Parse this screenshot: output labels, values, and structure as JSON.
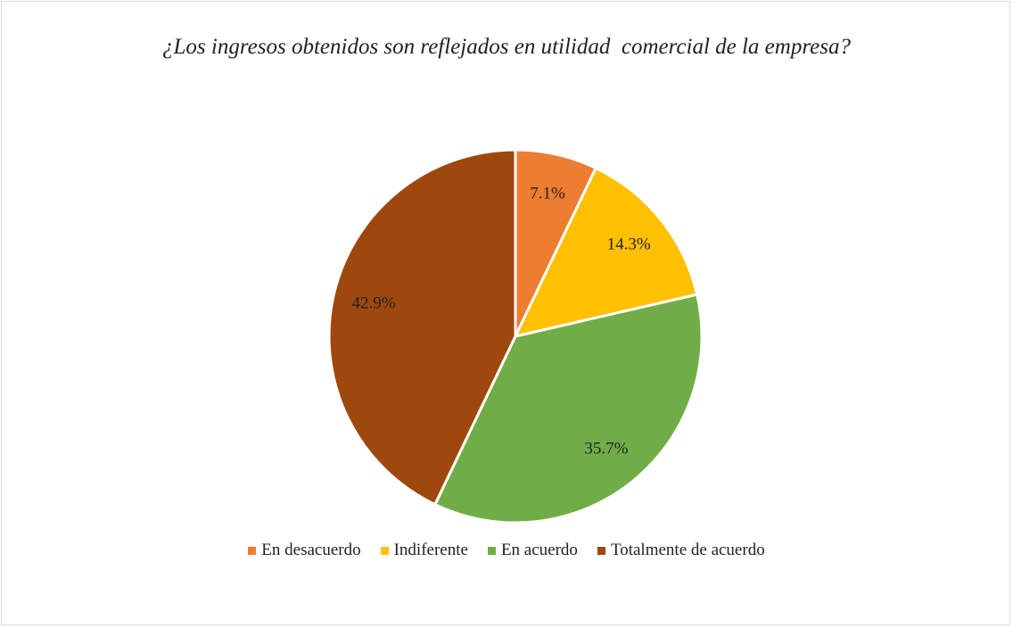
{
  "chart_data": {
    "type": "pie",
    "title": "¿Los ingresos obtenidos son reflejados en utilidad  comercial de la empresa?",
    "categories": [
      "En desacuerdo",
      "Indiferente",
      "En acuerdo",
      "Totalmente de acuerdo"
    ],
    "values": [
      7.1,
      14.3,
      35.7,
      42.9
    ],
    "value_labels": [
      "7.1%",
      "14.3%",
      "35.7%",
      "42.9%"
    ],
    "colors": [
      "#ED7D31",
      "#FFC000",
      "#70AD47",
      "#9E480E"
    ],
    "legend": "bottom"
  }
}
